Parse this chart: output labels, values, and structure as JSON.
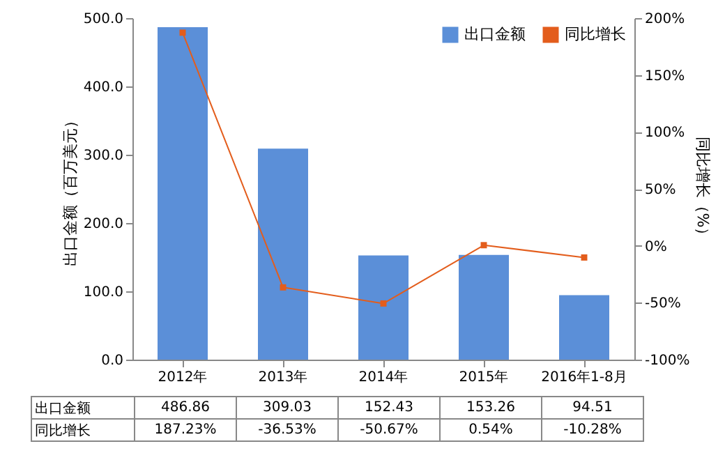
{
  "chart_data": {
    "type": "bar",
    "categories": [
      "2012年",
      "2013年",
      "2014年",
      "2015年",
      "2016年1-8月"
    ],
    "ylabel": "出口金额（百万美元）",
    "y2label": "同比增长（%）",
    "ylim": [
      0,
      500
    ],
    "yticks": [
      {
        "value": 0,
        "label": "0.0"
      },
      {
        "value": 100,
        "label": "100.0"
      },
      {
        "value": 200,
        "label": "200.0"
      },
      {
        "value": 300,
        "label": "300.0"
      },
      {
        "value": 400,
        "label": "400.0"
      },
      {
        "value": 500,
        "label": "500.0"
      }
    ],
    "y2lim": [
      -100,
      200
    ],
    "y2ticks": [
      {
        "value": -100,
        "label": "-100%"
      },
      {
        "value": -50,
        "label": "-50%"
      },
      {
        "value": 0,
        "label": "0%"
      },
      {
        "value": 50,
        "label": "50%"
      },
      {
        "value": 100,
        "label": "100%"
      },
      {
        "value": 150,
        "label": "150%"
      },
      {
        "value": 200,
        "label": "200%"
      }
    ],
    "legend": "top right",
    "marker": "square",
    "series": [
      {
        "name": "出口金额",
        "color": "#5b8fd8",
        "values": [
          486.86,
          309.03,
          152.43,
          153.26,
          94.51
        ],
        "value_labels": [
          "486.86",
          "309.03",
          "152.43",
          "153.26",
          "94.51"
        ]
      },
      {
        "name": "同比增长",
        "type": "line",
        "axis": "y2",
        "color": "#e35d1c",
        "values": [
          187.23,
          -36.53,
          -50.67,
          0.54,
          -10.28
        ],
        "value_labels": [
          "187.23%",
          "-36.53%",
          "-50.67%",
          "0.54%",
          "-10.28%"
        ]
      }
    ]
  }
}
